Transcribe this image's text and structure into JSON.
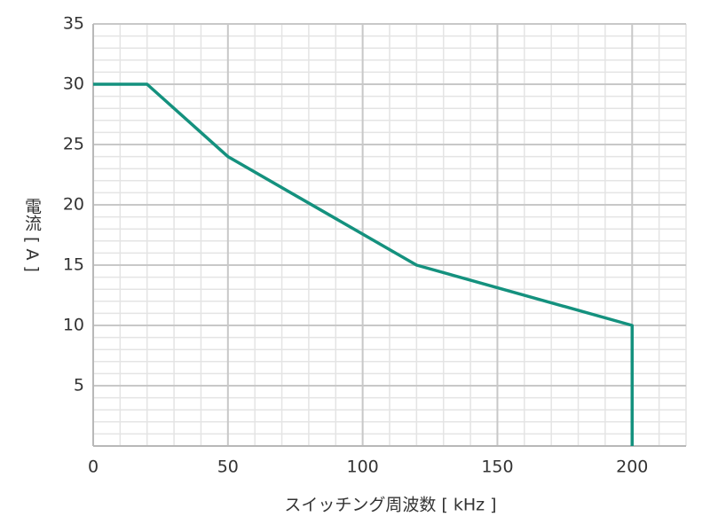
{
  "chart_data": {
    "type": "line",
    "x_label": "スイッチング周波数 [ kHz ]",
    "y_label": "電流 [ A ]",
    "x": [
      0,
      20,
      50,
      120,
      200,
      200
    ],
    "series": [
      {
        "color": "#14917e",
        "values": [
          30,
          30,
          24,
          15,
          10,
          0
        ]
      }
    ],
    "xlim": [
      0,
      220
    ],
    "xticks": [
      0,
      50,
      100,
      150,
      200
    ],
    "ylim": [
      0,
      35
    ],
    "yticks": [
      5,
      10,
      15,
      20,
      25,
      30,
      35
    ],
    "grid": true,
    "minor_x_step": 10,
    "minor_y_step": 1
  }
}
